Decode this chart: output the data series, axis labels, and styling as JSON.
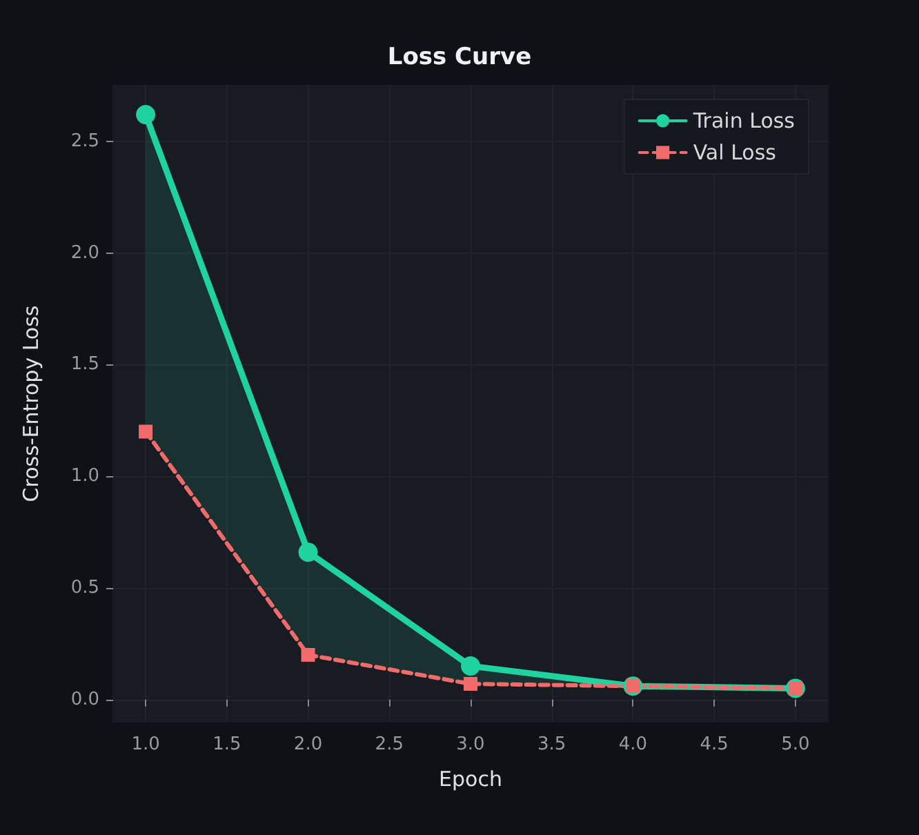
{
  "chart_data": {
    "type": "line",
    "title": "Loss Curve",
    "xlabel": "Epoch",
    "ylabel": "Cross-Entropy Loss",
    "x": [
      1,
      2,
      3,
      4,
      5
    ],
    "series": [
      {
        "name": "Train Loss",
        "color": "#1fd3a0",
        "marker": "circle",
        "line_style": "solid",
        "values": [
          2.62,
          0.66,
          0.15,
          0.06,
          0.05
        ],
        "lower": [
          1.2,
          0.2,
          0.07,
          0.06,
          0.05
        ],
        "upper": [
          2.62,
          0.66,
          0.15,
          0.06,
          0.05
        ]
      },
      {
        "name": "Val Loss",
        "color": "#f26b6b",
        "marker": "square",
        "line_style": "dashed",
        "values": [
          1.2,
          0.2,
          0.07,
          0.06,
          0.05
        ]
      }
    ],
    "xlim": [
      0.8,
      5.2
    ],
    "xticks": [
      {
        "value": 1,
        "label": "1.0"
      },
      1.5,
      {
        "value": 2,
        "label": "2.0"
      },
      2.5,
      {
        "value": 3,
        "label": "3.0"
      },
      3.5,
      {
        "value": 4,
        "label": "4.0"
      },
      4.5,
      {
        "value": 5,
        "label": "5.0"
      }
    ],
    "ylim": [
      -0.1,
      2.75
    ],
    "yticks": [
      {
        "value": 0,
        "label": "0.0"
      },
      0.5,
      {
        "value": 1,
        "label": "1.0"
      },
      1.5,
      {
        "value": 2,
        "label": "2.0"
      },
      2.5
    ],
    "grid": true,
    "legend": "top right"
  }
}
